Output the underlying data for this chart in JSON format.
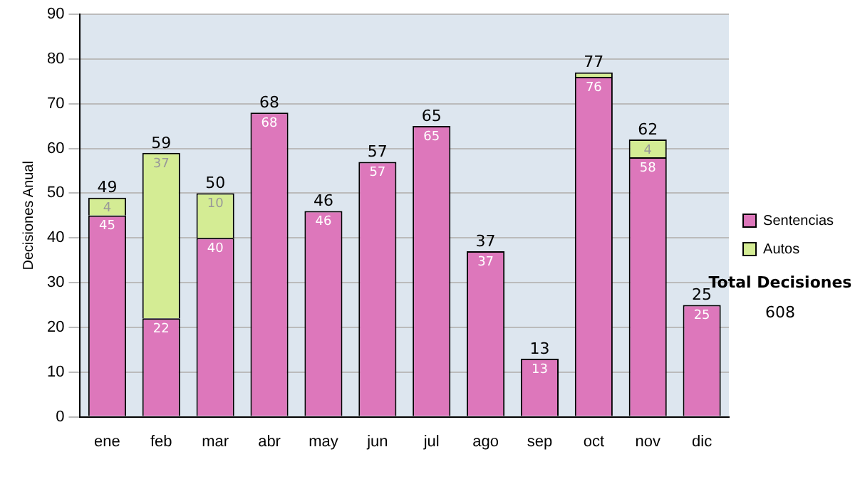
{
  "chart_data": {
    "type": "bar",
    "stacked": true,
    "ylabel": "Decisiones Anual",
    "categories": [
      "ene",
      "feb",
      "mar",
      "abr",
      "may",
      "jun",
      "jul",
      "ago",
      "sep",
      "oct",
      "nov",
      "dic"
    ],
    "series": [
      {
        "name": "Sentencias",
        "color": "#dd77bb",
        "values": [
          45,
          22,
          40,
          68,
          46,
          57,
          65,
          37,
          13,
          76,
          58,
          25
        ],
        "value_labels": [
          "45",
          "22",
          "40",
          "68",
          "46",
          "57",
          "65",
          "37",
          "13",
          "76",
          "58",
          "25"
        ]
      },
      {
        "name": "Autos",
        "color": "#d4ec94",
        "values": [
          4,
          37,
          10,
          0,
          0,
          0,
          0,
          0,
          0,
          1,
          4,
          0
        ],
        "value_labels": [
          "4",
          "37",
          "10",
          null,
          null,
          null,
          null,
          null,
          null,
          null,
          "4",
          null
        ]
      }
    ],
    "totals": [
      "49",
      "59",
      "50",
      "68",
      "46",
      "57",
      "65",
      "37",
      "13",
      "77",
      "62",
      "25"
    ],
    "ylim": [
      0,
      90
    ],
    "yticks": [
      0,
      10,
      20,
      30,
      40,
      50,
      60,
      70,
      80,
      90
    ],
    "grid": "y",
    "legend": "right",
    "annotations": [
      "Total Decisiones",
      "608"
    ]
  }
}
